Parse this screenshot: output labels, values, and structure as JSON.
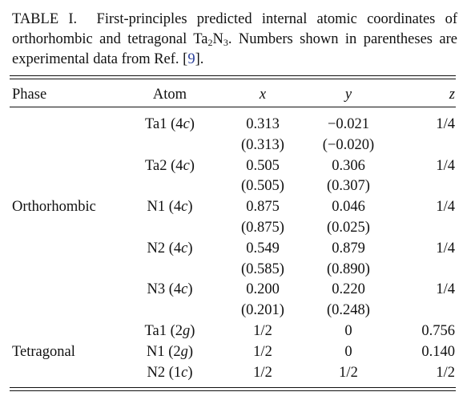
{
  "caption": {
    "label": "TABLE I.",
    "parts": [
      "First-principles predicted internal atomic coordinates of orthorhombic and tetragonal Ta",
      "2",
      "N",
      "3",
      ". Numbers shown in parentheses are experimental data from Ref. [",
      "9",
      "]."
    ]
  },
  "table": {
    "header": [
      "Phase",
      "Atom",
      "x",
      "y",
      "z"
    ],
    "rows": [
      {
        "atom": [
          "Ta1 (4",
          "c",
          ")"
        ],
        "x": "0.313",
        "y": "−0.021",
        "z": "1/4"
      },
      {
        "x": "(0.313)",
        "y": "(−0.020)"
      },
      {
        "atom": [
          "Ta2 (4",
          "c",
          ")"
        ],
        "x": "0.505",
        "y": "0.306",
        "z": "1/4"
      },
      {
        "x": "(0.505)",
        "y": "(0.307)"
      },
      {
        "phase": "Orthorhombic",
        "atom": [
          "N1 (4",
          "c",
          ")"
        ],
        "x": "0.875",
        "y": "0.046",
        "z": "1/4"
      },
      {
        "x": "(0.875)",
        "y": "(0.025)"
      },
      {
        "atom": [
          "N2 (4",
          "c",
          ")"
        ],
        "x": "0.549",
        "y": "0.879",
        "z": "1/4"
      },
      {
        "x": "(0.585)",
        "y": "(0.890)"
      },
      {
        "atom": [
          "N3 (4",
          "c",
          ")"
        ],
        "x": "0.200",
        "y": "0.220",
        "z": "1/4"
      },
      {
        "x": "(0.201)",
        "y": "(0.248)"
      },
      {
        "atom": [
          "Ta1 (2",
          "g",
          ")"
        ],
        "x": "1/2",
        "y": "0",
        "z": "0.756"
      },
      {
        "phase": "Tetragonal",
        "atom": [
          "N1 (2",
          "g",
          ")"
        ],
        "x": "1/2",
        "y": "0",
        "z": "0.140"
      },
      {
        "atom": [
          "N2 (1",
          "c",
          ")"
        ],
        "x": "1/2",
        "y": "1/2",
        "z": "1/2"
      }
    ]
  }
}
